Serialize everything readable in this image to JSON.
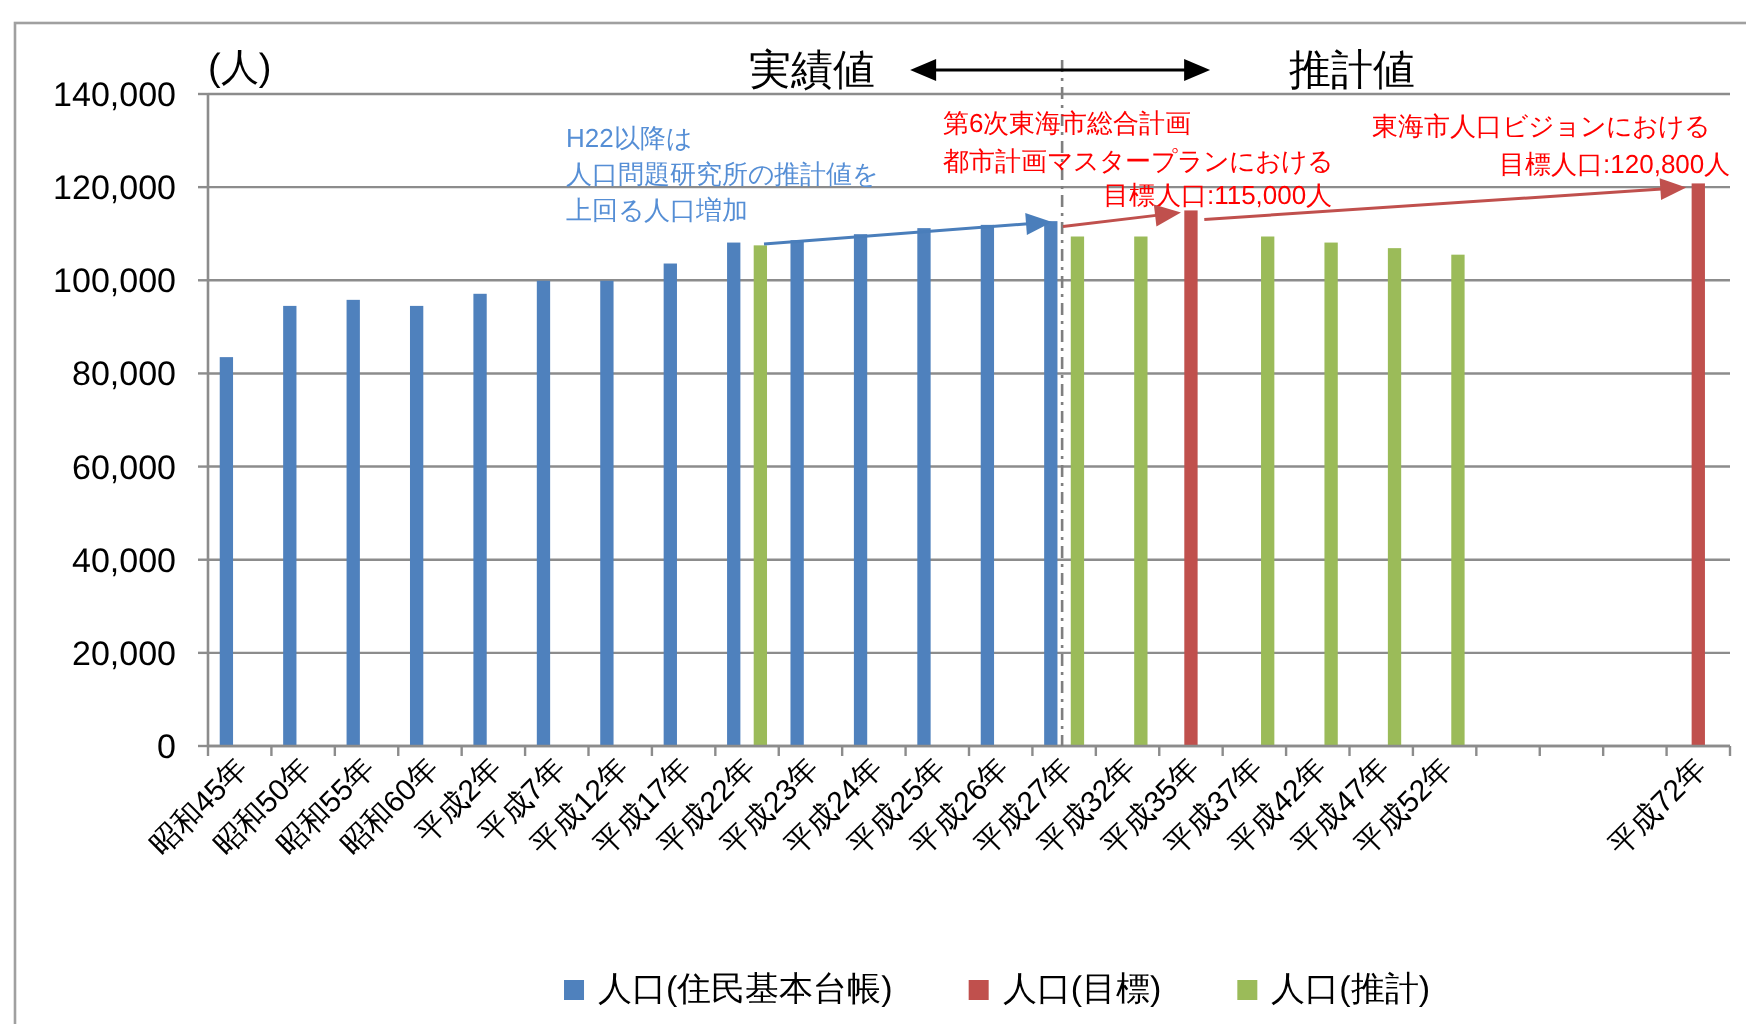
{
  "chart_data": {
    "type": "bar",
    "ylabel": "(人)",
    "categories": [
      "昭和45年",
      "昭和50年",
      "昭和55年",
      "昭和60年",
      "平成2年",
      "平成7年",
      "平成12年",
      "平成17年",
      "平成22年",
      "平成23年",
      "平成24年",
      "平成25年",
      "平成26年",
      "平成27年",
      "平成32年",
      "平成35年",
      "平成37年",
      "平成42年",
      "平成47年",
      "平成52年",
      null,
      null,
      null,
      "平成72年"
    ],
    "series": [
      {
        "name": "人口(住民基本台帳)",
        "color": "#4f81bd",
        "values": [
          83500,
          94500,
          95800,
          94500,
          97100,
          99900,
          99900,
          103600,
          108100,
          108600,
          109900,
          111200,
          111900,
          112700,
          null,
          null,
          null,
          null,
          null,
          null,
          null,
          null,
          null,
          null
        ]
      },
      {
        "name": "人口(目標)",
        "color": "#c0504d",
        "values": [
          null,
          null,
          null,
          null,
          null,
          null,
          null,
          null,
          null,
          null,
          null,
          null,
          null,
          null,
          null,
          115000,
          null,
          null,
          null,
          null,
          null,
          null,
          null,
          120800
        ]
      },
      {
        "name": "人口(推計)",
        "color": "#9bbb59",
        "values": [
          null,
          null,
          null,
          null,
          null,
          null,
          null,
          null,
          107500,
          null,
          null,
          null,
          null,
          109400,
          109400,
          null,
          109400,
          108100,
          106900,
          105500,
          null,
          null,
          null,
          null
        ]
      }
    ],
    "ylim": [
      0,
      140000
    ],
    "yticks": [
      0,
      {
        "value": 20000,
        "label": "20,000"
      },
      {
        "value": 40000,
        "label": "40,000"
      },
      {
        "value": 60000,
        "label": "60,000"
      },
      {
        "value": 80000,
        "label": "80,000"
      },
      {
        "value": 100000,
        "label": "100,000"
      },
      {
        "value": 120000,
        "label": "120,000"
      },
      {
        "value": 140000,
        "label": "140,000"
      }
    ],
    "grid": "y",
    "legend": "bottom",
    "ref_lines": [
      {
        "axis": "x",
        "value": "平成27年",
        "color": "#7f7f7f",
        "line_style": "dashed"
      }
    ],
    "annotations": [
      "実績値",
      "推計値",
      "H22以降は人口問題研究所の推計値を上回る人口増加",
      {
        "text": "第6次東海市総合計画都市計画マスタープランにおける目標人口:115,000人",
        "x": "平成35年",
        "y": 115000
      },
      {
        "text": "東海市人口ビジョンにおける目標人口:120,800人",
        "x": "平成72年",
        "y": 120800
      }
    ]
  }
}
